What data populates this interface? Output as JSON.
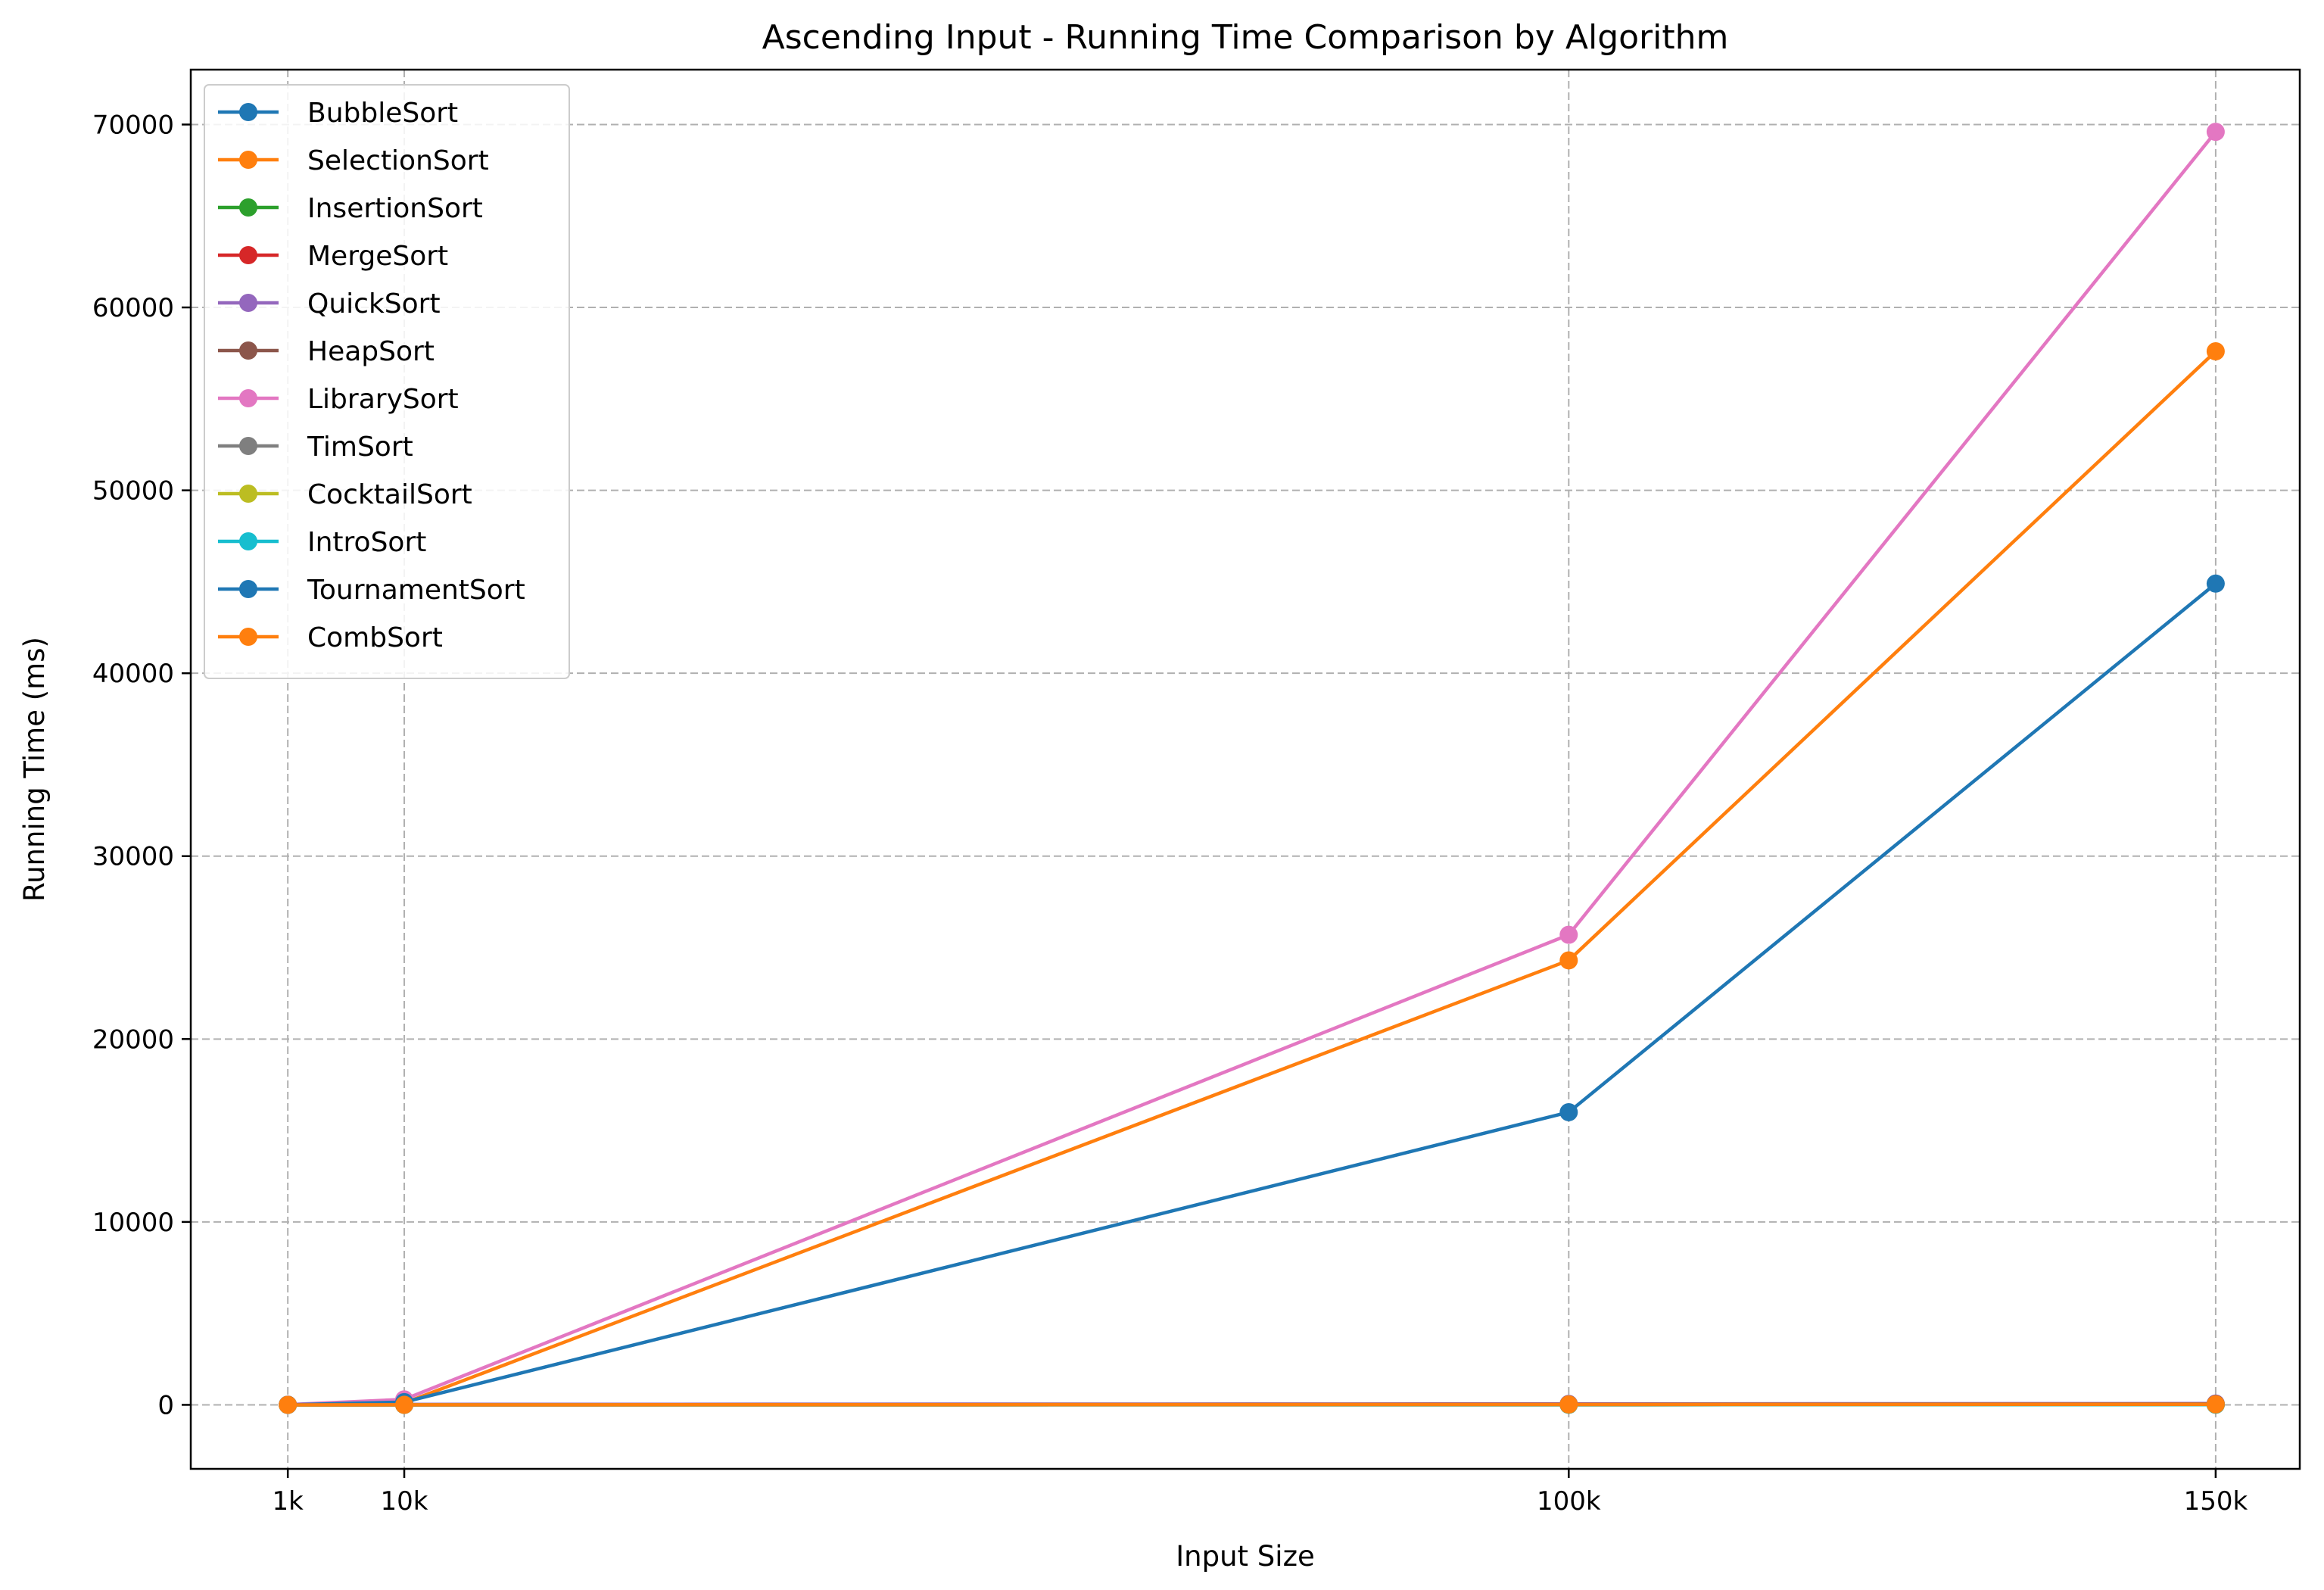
{
  "chart_data": {
    "type": "line",
    "title": "Ascending Input - Running Time Comparison by Algorithm",
    "xlabel": "Input Size",
    "ylabel": "Running Time (ms)",
    "x": [
      1000,
      10000,
      100000,
      150000
    ],
    "x_tick_labels": [
      "1k",
      "10k",
      "100k",
      "150k"
    ],
    "xlim": [
      -6500,
      156500
    ],
    "ylim": [
      -3500,
      73000
    ],
    "y_ticks": [
      0,
      10000,
      20000,
      30000,
      40000,
      50000,
      60000,
      70000
    ],
    "grid": true,
    "legend_position": "upper-left",
    "series": [
      {
        "name": "BubbleSort",
        "color": "#1f77b4",
        "values": [
          0,
          1,
          10,
          15
        ]
      },
      {
        "name": "SelectionSort",
        "color": "#ff7f0e",
        "values": [
          5,
          100,
          24300,
          57600
        ]
      },
      {
        "name": "InsertionSort",
        "color": "#2ca02c",
        "values": [
          0,
          1,
          5,
          8
        ]
      },
      {
        "name": "MergeSort",
        "color": "#d62728",
        "values": [
          0,
          2,
          20,
          30
        ]
      },
      {
        "name": "QuickSort",
        "color": "#9467bd",
        "values": [
          1,
          25,
          50,
          70
        ]
      },
      {
        "name": "HeapSort",
        "color": "#8c564b",
        "values": [
          0,
          3,
          30,
          45
        ]
      },
      {
        "name": "LibrarySort",
        "color": "#e377c2",
        "values": [
          10,
          300,
          25700,
          69600
        ]
      },
      {
        "name": "TimSort",
        "color": "#7f7f7f",
        "values": [
          0,
          1,
          5,
          8
        ]
      },
      {
        "name": "CocktailSort",
        "color": "#bcbd22",
        "values": [
          0,
          1,
          10,
          15
        ]
      },
      {
        "name": "IntroSort",
        "color": "#17becf",
        "values": [
          0,
          1,
          10,
          15
        ]
      },
      {
        "name": "TournamentSort",
        "color": "#1f77b4",
        "values": [
          3,
          150,
          16000,
          44900
        ]
      },
      {
        "name": "CombSort",
        "color": "#ff7f0e",
        "values": [
          0,
          2,
          20,
          30
        ]
      }
    ]
  }
}
